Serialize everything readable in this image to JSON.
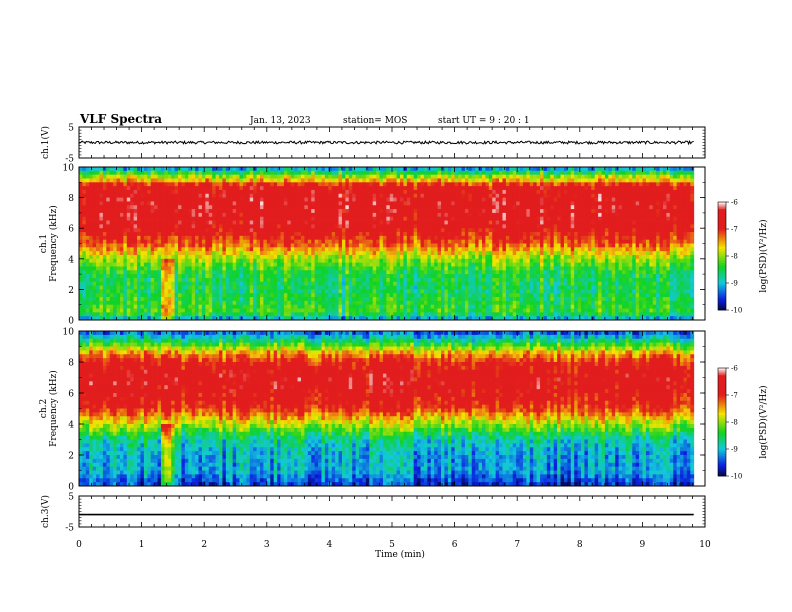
{
  "header": {
    "title": "VLF Spectra",
    "date": "Jan. 13, 2023",
    "station": "station= MOS",
    "start_ut": "start  UT =  9 : 20 : 1"
  },
  "colors": {
    "white": "#ffffff",
    "red": "#e21d1d",
    "yellow": "#f4e400",
    "green": "#11d321",
    "cyan": "#12c8dd",
    "blue": "#0b23e0",
    "navy": "#04084a"
  },
  "chart_data": [
    {
      "id": "ch1v",
      "type": "line",
      "ylabel": "ch.1(V)",
      "ylim": [
        -5,
        5
      ],
      "ytick_labels": [
        "5",
        "-5"
      ],
      "series": [
        {
          "values_note": "",
          "level": 0.0
        }
      ]
    },
    {
      "id": "ch1",
      "type": "heatmap",
      "ylabel": [
        "ch.1",
        "Frequency (kHz)"
      ],
      "ylim": [
        0,
        10
      ],
      "ytick_labels": [
        "10",
        "8",
        "6",
        "4",
        "2",
        "0"
      ],
      "colorbar": {
        "label": "log(PSD)(V²/Hz)",
        "range": [
          -10,
          -6
        ],
        "tick_labels": [
          "-6",
          "-7",
          "-8",
          "-9",
          "-10"
        ]
      },
      "profile": [
        {
          "f": 0.0,
          "v": -9.2
        },
        {
          "f": 0.5,
          "v": -8.3
        },
        {
          "f": 1.0,
          "v": -8.4
        },
        {
          "f": 2.0,
          "v": -8.6
        },
        {
          "f": 3.0,
          "v": -8.5
        },
        {
          "f": 4.0,
          "v": -8.0
        },
        {
          "f": 5.0,
          "v": -7.2
        },
        {
          "f": 6.0,
          "v": -6.7
        },
        {
          "f": 7.0,
          "v": -6.6
        },
        {
          "f": 8.0,
          "v": -6.6
        },
        {
          "f": 8.8,
          "v": -6.8
        },
        {
          "f": 9.0,
          "v": -7.4
        },
        {
          "f": 9.4,
          "v": -8.0
        },
        {
          "f": 9.8,
          "v": -8.8
        },
        {
          "f": 10.0,
          "v": -9.5
        }
      ]
    },
    {
      "id": "ch2",
      "type": "heatmap",
      "ylabel": [
        "ch.2",
        "Frequency (kHz)"
      ],
      "ylim": [
        0,
        10
      ],
      "ytick_labels": [
        "10",
        "8",
        "6",
        "4",
        "2",
        "0"
      ],
      "colorbar": {
        "label": "log(PSD)(V²/Hz)",
        "range": [
          -10,
          -6
        ],
        "tick_labels": [
          "-6",
          "-7",
          "-8",
          "-9",
          "-10"
        ]
      },
      "profile": [
        {
          "f": 0.0,
          "v": -9.6
        },
        {
          "f": 1.0,
          "v": -9.1
        },
        {
          "f": 2.0,
          "v": -9.1
        },
        {
          "f": 3.0,
          "v": -8.8
        },
        {
          "f": 4.0,
          "v": -7.9
        },
        {
          "f": 5.0,
          "v": -7.0
        },
        {
          "f": 6.0,
          "v": -6.7
        },
        {
          "f": 7.0,
          "v": -6.6
        },
        {
          "f": 8.0,
          "v": -6.9
        },
        {
          "f": 8.6,
          "v": -7.5
        },
        {
          "f": 9.0,
          "v": -8.1
        },
        {
          "f": 9.5,
          "v": -8.8
        },
        {
          "f": 10.0,
          "v": -9.5
        }
      ]
    },
    {
      "id": "ch3v",
      "type": "line",
      "ylabel": "ch.3(V)",
      "ylim": [
        -5,
        5
      ],
      "ytick_labels": [
        "5",
        "-5"
      ],
      "series": [
        {
          "values_note": "",
          "level": -1.0
        }
      ]
    }
  ],
  "xaxis": {
    "label": "Time (min)",
    "xlim": [
      0,
      10
    ],
    "tick_labels": [
      "0",
      "1",
      "2",
      "3",
      "4",
      "5",
      "6",
      "7",
      "8",
      "9",
      "10"
    ],
    "data_end": 9.82
  }
}
